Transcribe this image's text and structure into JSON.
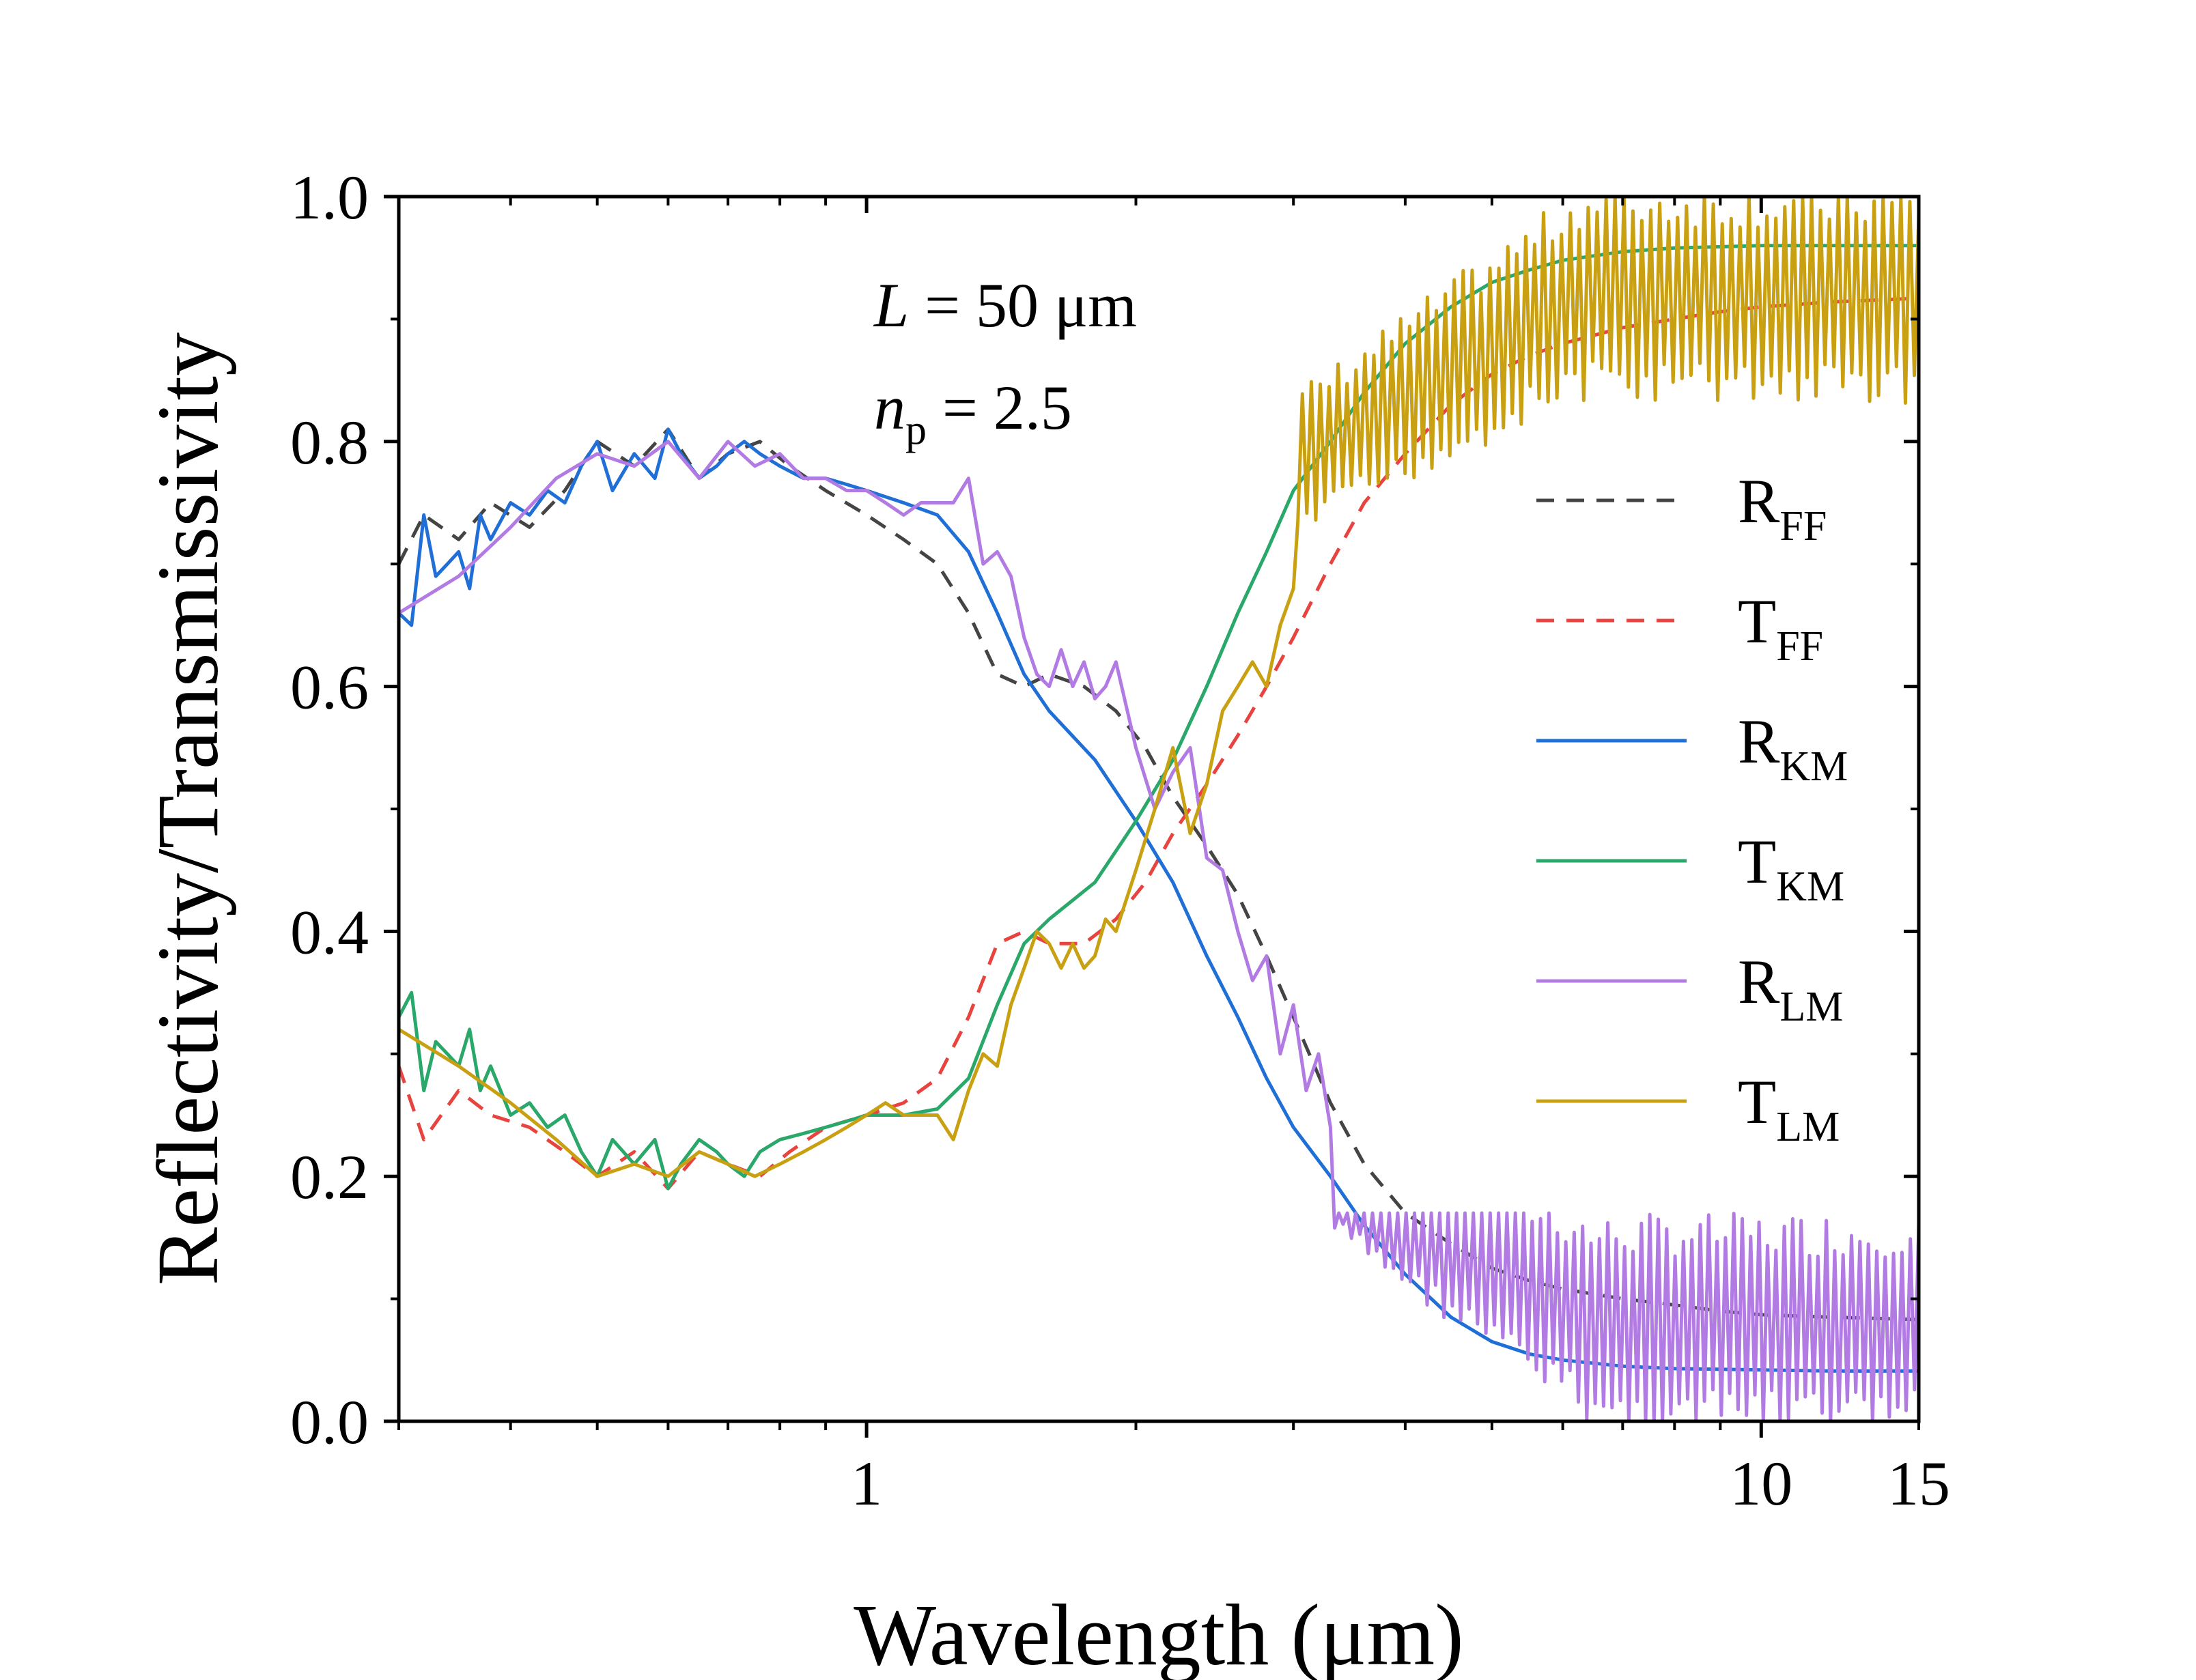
{
  "chart_data": {
    "type": "line",
    "title": "",
    "xlabel": "Wavelength (μm)",
    "ylabel": "Reflectivity/Transmissivity",
    "xscale": "log",
    "xlim": [
      0.3,
      15
    ],
    "ylim": [
      0.0,
      1.0
    ],
    "x_tick_labels": [
      {
        "value": 1,
        "label": "1"
      },
      {
        "value": 10,
        "label": "10"
      },
      {
        "value": 15,
        "label": "15"
      }
    ],
    "y_tick_labels": [
      {
        "value": 0.0,
        "label": "0.0"
      },
      {
        "value": 0.2,
        "label": "0.2"
      },
      {
        "value": 0.4,
        "label": "0.4"
      },
      {
        "value": 0.6,
        "label": "0.6"
      },
      {
        "value": 0.8,
        "label": "0.8"
      },
      {
        "value": 1.0,
        "label": "1.0"
      }
    ],
    "grid": false,
    "legend_position": "right",
    "annotations": {
      "line1": {
        "var": "L",
        "text": " = 50 μm"
      },
      "line2": {
        "var": "n",
        "sub": "p",
        "text": " = 2.5"
      }
    },
    "series": [
      {
        "name": "R_FF",
        "label_main": "R",
        "label_sub": "FF",
        "color": "#444444",
        "dash": "dashed",
        "x": [
          0.3,
          0.32,
          0.35,
          0.38,
          0.42,
          0.46,
          0.5,
          0.55,
          0.6,
          0.65,
          0.7,
          0.76,
          0.82,
          0.9,
          1.0,
          1.1,
          1.2,
          1.3,
          1.4,
          1.5,
          1.6,
          1.75,
          1.9,
          2.05,
          2.2,
          2.4,
          2.6,
          2.8,
          3.0,
          3.3,
          3.6,
          4.0,
          4.5,
          5.0,
          5.5,
          6.0,
          7.0,
          8.0,
          9.0,
          10.0,
          12.0,
          15.0
        ],
        "y": [
          0.7,
          0.74,
          0.72,
          0.75,
          0.73,
          0.76,
          0.8,
          0.78,
          0.81,
          0.77,
          0.79,
          0.8,
          0.78,
          0.76,
          0.74,
          0.72,
          0.7,
          0.66,
          0.61,
          0.6,
          0.61,
          0.6,
          0.58,
          0.55,
          0.51,
          0.47,
          0.43,
          0.38,
          0.33,
          0.26,
          0.21,
          0.17,
          0.145,
          0.125,
          0.115,
          0.108,
          0.1,
          0.095,
          0.09,
          0.087,
          0.085,
          0.083
        ]
      },
      {
        "name": "T_FF",
        "label_main": "T",
        "label_sub": "FF",
        "color": "#e8433f",
        "dash": "dashed",
        "x": [
          0.3,
          0.32,
          0.35,
          0.38,
          0.42,
          0.46,
          0.5,
          0.55,
          0.6,
          0.65,
          0.7,
          0.76,
          0.82,
          0.9,
          1.0,
          1.1,
          1.2,
          1.3,
          1.4,
          1.5,
          1.6,
          1.75,
          1.9,
          2.05,
          2.2,
          2.4,
          2.6,
          2.8,
          3.0,
          3.3,
          3.6,
          4.0,
          4.5,
          5.0,
          5.5,
          6.0,
          7.0,
          8.0,
          9.0,
          10.0,
          12.0,
          15.0
        ],
        "y": [
          0.29,
          0.23,
          0.27,
          0.25,
          0.24,
          0.22,
          0.2,
          0.22,
          0.19,
          0.22,
          0.21,
          0.2,
          0.22,
          0.24,
          0.25,
          0.26,
          0.28,
          0.33,
          0.39,
          0.4,
          0.39,
          0.39,
          0.41,
          0.44,
          0.48,
          0.52,
          0.56,
          0.6,
          0.64,
          0.7,
          0.75,
          0.79,
          0.83,
          0.855,
          0.87,
          0.88,
          0.893,
          0.9,
          0.906,
          0.91,
          0.914,
          0.917
        ]
      },
      {
        "name": "R_KM",
        "label_main": "R",
        "label_sub": "KM",
        "color": "#1f6fd6",
        "dash": "solid",
        "x": [
          0.3,
          0.31,
          0.32,
          0.33,
          0.34,
          0.35,
          0.36,
          0.37,
          0.38,
          0.4,
          0.42,
          0.44,
          0.46,
          0.48,
          0.5,
          0.52,
          0.55,
          0.58,
          0.6,
          0.62,
          0.65,
          0.68,
          0.7,
          0.73,
          0.76,
          0.8,
          0.85,
          0.9,
          0.95,
          1.0,
          1.1,
          1.2,
          1.3,
          1.4,
          1.5,
          1.6,
          1.8,
          2.0,
          2.2,
          2.4,
          2.6,
          2.8,
          3.0,
          3.3,
          3.6,
          4.0,
          4.5,
          5.0,
          5.5,
          6.0,
          7.0,
          8.0,
          10.0,
          12.0,
          15.0
        ],
        "y": [
          0.66,
          0.65,
          0.74,
          0.69,
          0.7,
          0.71,
          0.68,
          0.74,
          0.72,
          0.75,
          0.74,
          0.76,
          0.75,
          0.78,
          0.8,
          0.76,
          0.79,
          0.77,
          0.81,
          0.79,
          0.77,
          0.78,
          0.79,
          0.8,
          0.79,
          0.78,
          0.77,
          0.77,
          0.765,
          0.76,
          0.75,
          0.74,
          0.71,
          0.66,
          0.61,
          0.58,
          0.54,
          0.49,
          0.44,
          0.38,
          0.33,
          0.28,
          0.24,
          0.2,
          0.16,
          0.12,
          0.085,
          0.065,
          0.055,
          0.05,
          0.045,
          0.043,
          0.042,
          0.041,
          0.041
        ]
      },
      {
        "name": "T_KM",
        "label_main": "T",
        "label_sub": "KM",
        "color": "#2aa86a",
        "dash": "solid",
        "x": [
          0.3,
          0.31,
          0.32,
          0.33,
          0.34,
          0.35,
          0.36,
          0.37,
          0.38,
          0.4,
          0.42,
          0.44,
          0.46,
          0.48,
          0.5,
          0.52,
          0.55,
          0.58,
          0.6,
          0.62,
          0.65,
          0.68,
          0.7,
          0.73,
          0.76,
          0.8,
          0.85,
          0.9,
          0.95,
          1.0,
          1.1,
          1.2,
          1.3,
          1.4,
          1.5,
          1.6,
          1.8,
          2.0,
          2.2,
          2.4,
          2.6,
          2.8,
          3.0,
          3.3,
          3.6,
          4.0,
          4.5,
          5.0,
          5.5,
          6.0,
          7.0,
          8.0,
          10.0,
          12.0,
          15.0
        ],
        "y": [
          0.33,
          0.35,
          0.27,
          0.31,
          0.3,
          0.29,
          0.32,
          0.27,
          0.29,
          0.25,
          0.26,
          0.24,
          0.25,
          0.22,
          0.2,
          0.23,
          0.21,
          0.23,
          0.19,
          0.21,
          0.23,
          0.22,
          0.21,
          0.2,
          0.22,
          0.23,
          0.235,
          0.24,
          0.245,
          0.25,
          0.25,
          0.255,
          0.28,
          0.34,
          0.39,
          0.41,
          0.44,
          0.49,
          0.54,
          0.6,
          0.66,
          0.71,
          0.76,
          0.8,
          0.84,
          0.88,
          0.91,
          0.93,
          0.94,
          0.948,
          0.955,
          0.958,
          0.96,
          0.96,
          0.96
        ]
      },
      {
        "name": "R_LM",
        "label_main": "R",
        "label_sub": "LM",
        "color": "#b27be3",
        "dash": "solid",
        "noise_from_x": 3.3,
        "noise_band": [
          0.0,
          0.17
        ],
        "x": [
          0.3,
          0.35,
          0.4,
          0.45,
          0.5,
          0.55,
          0.6,
          0.65,
          0.7,
          0.75,
          0.8,
          0.85,
          0.9,
          0.95,
          1.0,
          1.05,
          1.1,
          1.15,
          1.2,
          1.25,
          1.3,
          1.35,
          1.4,
          1.45,
          1.5,
          1.55,
          1.6,
          1.65,
          1.7,
          1.75,
          1.8,
          1.85,
          1.9,
          2.0,
          2.1,
          2.2,
          2.3,
          2.4,
          2.5,
          2.6,
          2.7,
          2.8,
          2.9,
          3.0,
          3.1,
          3.2,
          3.3
        ],
        "y": [
          0.66,
          0.69,
          0.73,
          0.77,
          0.79,
          0.78,
          0.8,
          0.77,
          0.8,
          0.78,
          0.79,
          0.77,
          0.77,
          0.76,
          0.76,
          0.75,
          0.74,
          0.75,
          0.75,
          0.75,
          0.77,
          0.7,
          0.71,
          0.69,
          0.64,
          0.61,
          0.6,
          0.63,
          0.6,
          0.62,
          0.59,
          0.6,
          0.62,
          0.55,
          0.5,
          0.53,
          0.55,
          0.46,
          0.45,
          0.4,
          0.36,
          0.38,
          0.3,
          0.34,
          0.27,
          0.3,
          0.24
        ]
      },
      {
        "name": "T_LM",
        "label_main": "T",
        "label_sub": "LM",
        "color": "#c8a012",
        "dash": "solid",
        "noise_from_x": 3.0,
        "noise_band": [
          0.72,
          1.0
        ],
        "x": [
          0.3,
          0.35,
          0.4,
          0.45,
          0.5,
          0.55,
          0.6,
          0.65,
          0.7,
          0.75,
          0.8,
          0.85,
          0.9,
          0.95,
          1.0,
          1.05,
          1.1,
          1.15,
          1.2,
          1.25,
          1.3,
          1.35,
          1.4,
          1.45,
          1.5,
          1.55,
          1.6,
          1.65,
          1.7,
          1.75,
          1.8,
          1.85,
          1.9,
          2.0,
          2.1,
          2.2,
          2.3,
          2.4,
          2.5,
          2.6,
          2.7,
          2.8,
          2.9,
          3.0
        ],
        "y": [
          0.32,
          0.29,
          0.26,
          0.23,
          0.2,
          0.21,
          0.2,
          0.22,
          0.21,
          0.2,
          0.21,
          0.22,
          0.23,
          0.24,
          0.25,
          0.26,
          0.25,
          0.25,
          0.25,
          0.23,
          0.27,
          0.3,
          0.29,
          0.34,
          0.37,
          0.4,
          0.39,
          0.37,
          0.39,
          0.37,
          0.38,
          0.41,
          0.4,
          0.45,
          0.5,
          0.55,
          0.48,
          0.52,
          0.58,
          0.6,
          0.62,
          0.6,
          0.65,
          0.68
        ]
      }
    ]
  }
}
